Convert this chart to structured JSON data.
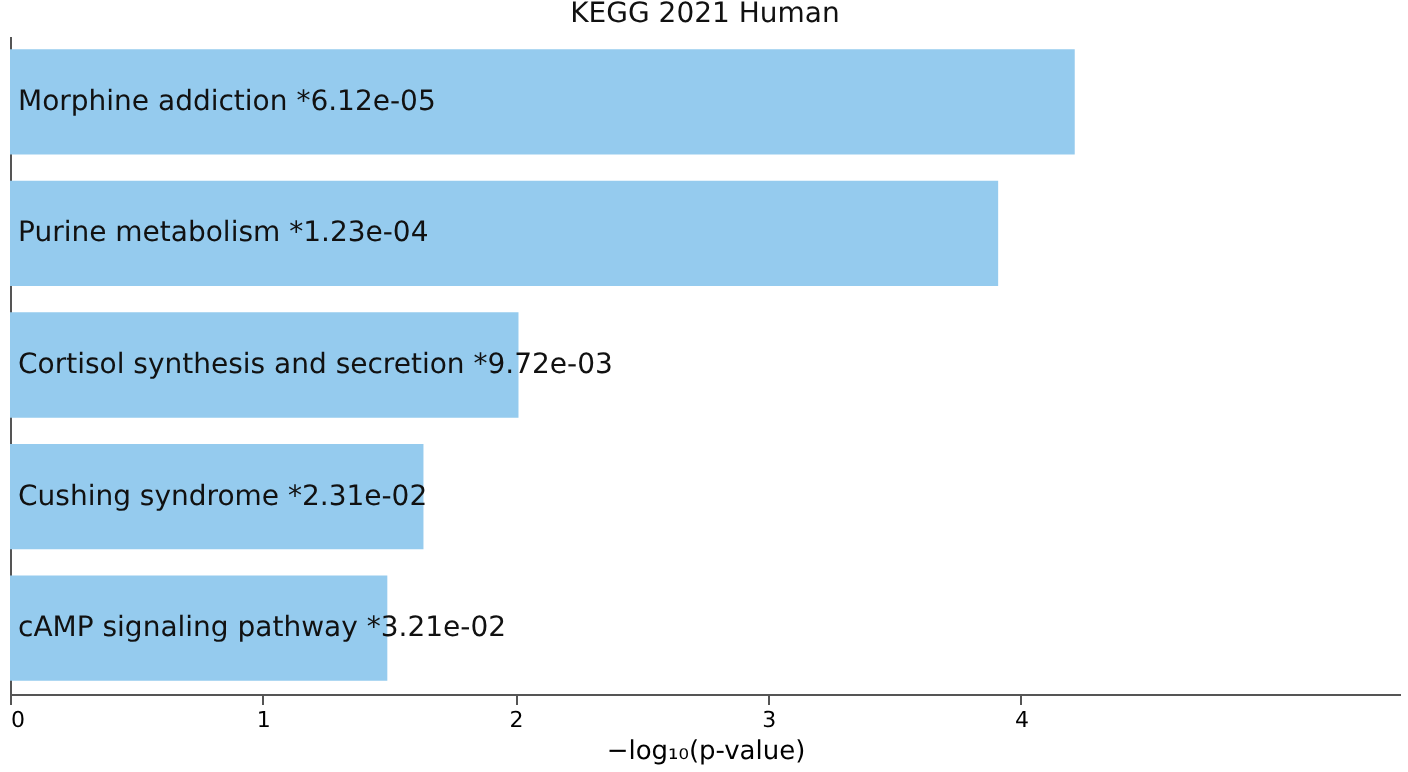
{
  "chart_data": {
    "type": "bar",
    "orientation": "horizontal",
    "title": "KEGG 2021 Human",
    "xlabel": "−log₁₀(p-value)",
    "categories": [
      "Morphine addiction  *6.12e-05",
      "Purine metabolism  *1.23e-04",
      "Cortisol synthesis and secretion  *9.72e-03",
      "Cushing syndrome  *2.31e-02",
      "cAMP signaling pathway  *3.21e-02"
    ],
    "values": [
      4.213,
      3.91,
      2.012,
      1.636,
      1.493
    ],
    "color": "#95cbee",
    "xlim": [
      0,
      5.5
    ],
    "xticks": [
      0,
      1,
      2,
      3,
      4
    ],
    "grid": false,
    "tick_labels": "x"
  }
}
